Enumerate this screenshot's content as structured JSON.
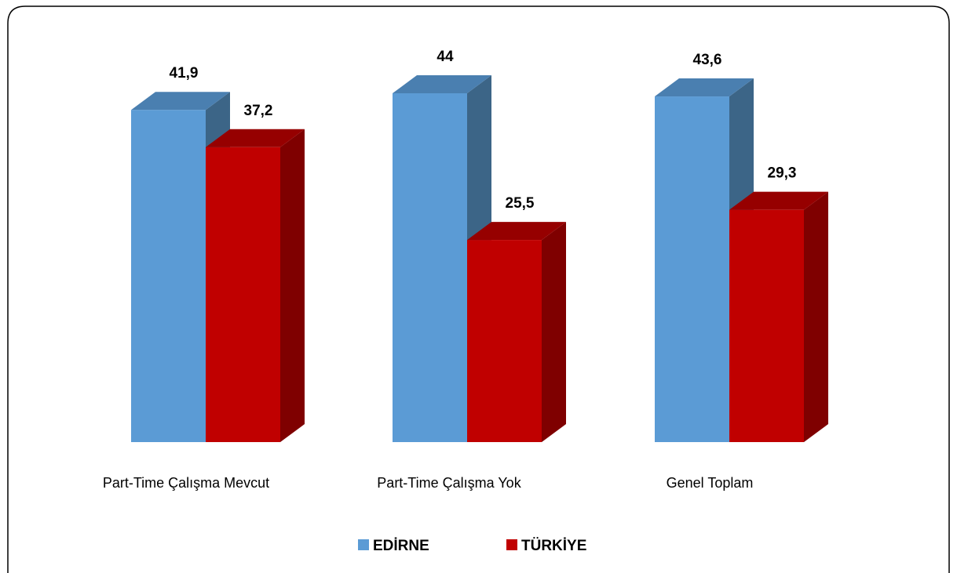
{
  "chart_data": {
    "type": "bar",
    "categories": [
      "Part-Time Çalışma Mevcut",
      "Part-Time Çalışma Yok",
      "Genel Toplam"
    ],
    "series": [
      {
        "name": "EDİRNE",
        "values": [
          41.9,
          44,
          43.6
        ],
        "labels": [
          "41,9",
          "44",
          "43,6"
        ],
        "color": "#5b9bd5",
        "side_color": "#3c6587",
        "top_color": "#4a7fb0"
      },
      {
        "name": "TÜRKİYE",
        "values": [
          37.2,
          25.5,
          29.3
        ],
        "labels": [
          "37,2",
          "25,5",
          "29,3"
        ],
        "color": "#c00000",
        "side_color": "#7f0000",
        "top_color": "#960000"
      }
    ],
    "title": "",
    "xlabel": "",
    "ylabel": "",
    "ylim": [
      0,
      44
    ],
    "grid": false,
    "legend": "bottom",
    "style": "3d-columns"
  }
}
